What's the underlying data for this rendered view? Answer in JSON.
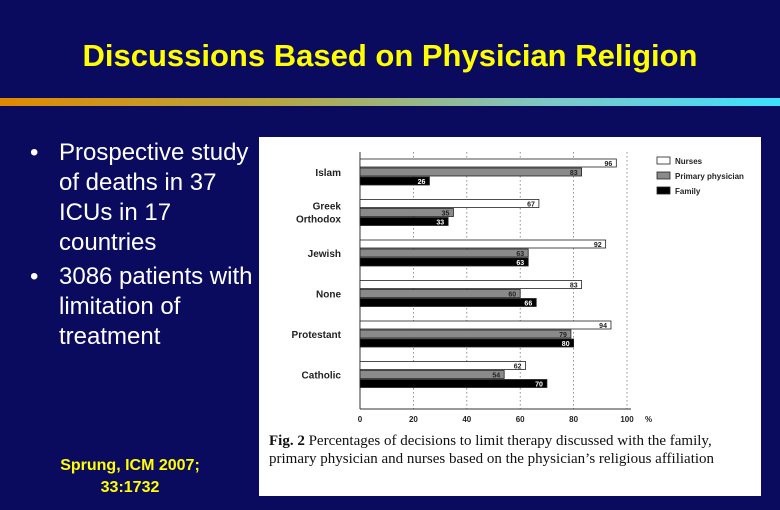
{
  "slide": {
    "title": "Discussions Based on Physician Religion",
    "bullets": [
      {
        "marker": "•",
        "text": "Prospective study of deaths in 37 ICUs in 17 countries"
      },
      {
        "marker": "•",
        "text": "3086 patients with limitation of treatment"
      }
    ],
    "citation": "Sprung, ICM 2007; 33:1732"
  },
  "figure": {
    "caption_label": "Fig. 2",
    "caption_text": "Percentages of decisions to limit therapy discussed with the family, primary physician and nurses based on the physician’s religious affiliation"
  },
  "chart_data": {
    "type": "bar",
    "orientation": "horizontal",
    "categories": [
      "Islam",
      "Greek Orthodox",
      "Jewish",
      "None",
      "Protestant",
      "Catholic"
    ],
    "series": [
      {
        "name": "Nurses",
        "color": "#ffffff",
        "values": [
          96,
          67,
          92,
          83,
          94,
          62
        ]
      },
      {
        "name": "Primary physician",
        "color": "#8a8a8a",
        "values": [
          83,
          35,
          63,
          60,
          79,
          54
        ]
      },
      {
        "name": "Family",
        "color": "#000000",
        "values": [
          26,
          33,
          63,
          66,
          80,
          70
        ]
      }
    ],
    "xticks": [
      0,
      20,
      40,
      60,
      80,
      100
    ],
    "xunit": "%",
    "xlim": [
      0,
      100
    ],
    "legend_position": "top-right",
    "value_labels": true
  }
}
